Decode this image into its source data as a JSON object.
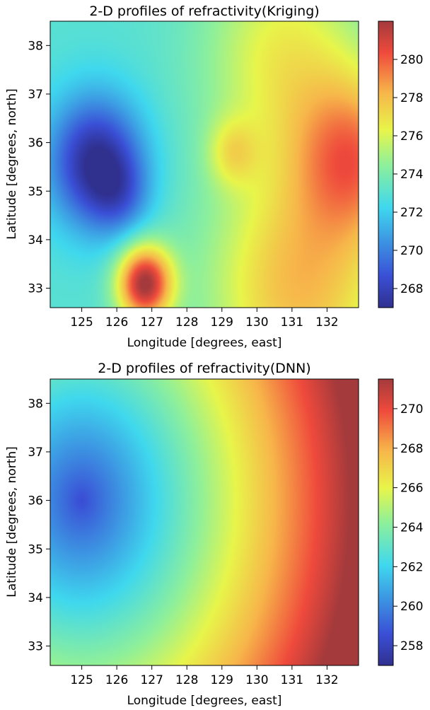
{
  "chart_data": [
    {
      "type": "heatmap",
      "title": "2-D profiles of refractivity(Kriging)",
      "xlabel": "Longitude [degrees, east]",
      "ylabel": "Latitude [degrees, north]",
      "xlim": [
        124.1,
        132.9
      ],
      "ylim": [
        32.6,
        38.5
      ],
      "xticks": [
        125,
        126,
        127,
        128,
        129,
        130,
        131,
        132
      ],
      "yticks": [
        33,
        34,
        35,
        36,
        37,
        38
      ],
      "colorbar": {
        "min": 267.0,
        "max": 282.0,
        "ticks": [
          268,
          270,
          272,
          274,
          276,
          278,
          280
        ],
        "colormap": "jet"
      },
      "field": {
        "base": 273.0,
        "features": [
          {
            "lon": 125.4,
            "lat": 35.6,
            "amp": -6.0,
            "sigma": 0.95
          },
          {
            "lon": 126.1,
            "lat": 34.9,
            "amp": -2.0,
            "sigma": 0.6
          },
          {
            "lon": 126.8,
            "lat": 33.1,
            "amp": 9.0,
            "sigma": 0.55
          },
          {
            "lon": 129.3,
            "lat": 35.8,
            "amp": 2.5,
            "sigma": 0.5
          },
          {
            "lon": 132.8,
            "lat": 35.7,
            "amp": 5.5,
            "sigma": 1.2
          },
          {
            "lon": 131.2,
            "lat": 33.0,
            "amp": 5.0,
            "sigma": 1.8
          },
          {
            "lon": 130.8,
            "lat": 37.8,
            "amp": 3.5,
            "sigma": 1.6
          }
        ]
      }
    },
    {
      "type": "heatmap",
      "title": "2-D profiles of refractivity(DNN)",
      "xlabel": "Longitude [degrees, east]",
      "ylabel": "Latitude [degrees, north]",
      "xlim": [
        124.1,
        132.9
      ],
      "ylim": [
        32.6,
        38.5
      ],
      "xticks": [
        125,
        126,
        127,
        128,
        129,
        130,
        131,
        132
      ],
      "yticks": [
        33,
        34,
        35,
        36,
        37,
        38
      ],
      "colorbar": {
        "min": 257.0,
        "max": 271.5,
        "ticks": [
          258,
          260,
          262,
          264,
          266,
          268,
          270
        ],
        "colormap": "jet"
      },
      "field": {
        "radial": {
          "lon": 125.0,
          "lat": 36.0,
          "min": 258.5,
          "slope": 1.7
        }
      }
    }
  ]
}
